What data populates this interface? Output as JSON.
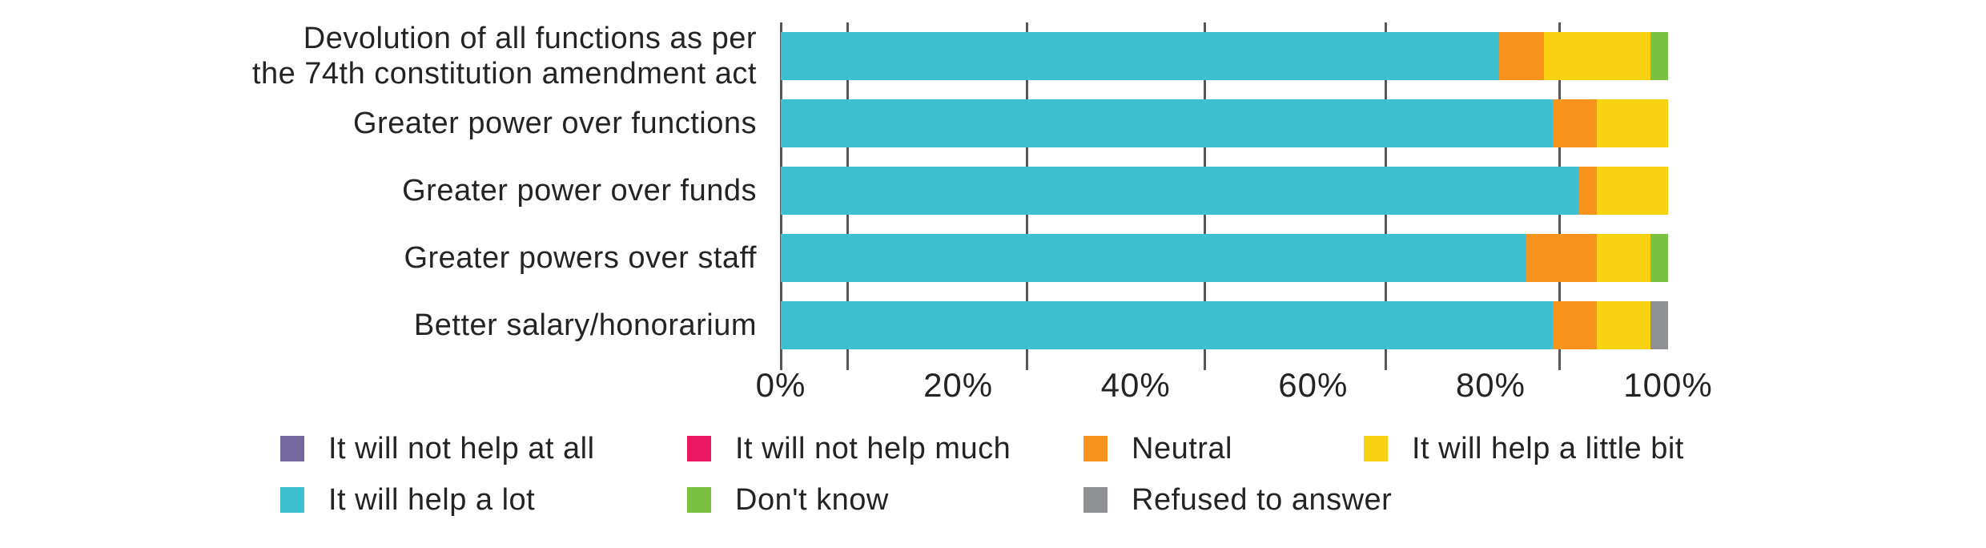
{
  "chart_data": {
    "type": "bar",
    "orientation": "horizontal",
    "stacked": true,
    "unit": "%",
    "title": "",
    "xlabel": "",
    "ylabel": "",
    "categories": [
      {
        "label": "Devolution of all functions as per the 74th constitution amendment act",
        "lines": [
          "Devolution of all functions as per",
          "the 74th constitution amendment act"
        ]
      },
      {
        "label": "Greater power over functions",
        "lines": [
          "Greater power over functions"
        ]
      },
      {
        "label": "Greater power over funds",
        "lines": [
          "Greater power over funds"
        ]
      },
      {
        "label": "Greater powers over staff",
        "lines": [
          "Greater powers over staff"
        ]
      },
      {
        "label": "Better salary/honorarium",
        "lines": [
          "Better salary/honorarium"
        ]
      }
    ],
    "series": [
      {
        "name": "It will not help at all",
        "color": "#74689e",
        "values": [
          0,
          0,
          0,
          0,
          0
        ]
      },
      {
        "name": "It will not help much",
        "color": "#eb1964",
        "values": [
          0,
          0,
          0,
          0,
          0
        ]
      },
      {
        "name": "It will help a lot",
        "color": "#3ec0d1",
        "values": [
          81,
          87,
          90,
          84,
          87
        ]
      },
      {
        "name": "Neutral",
        "color": "#f7941e",
        "values": [
          5,
          5,
          2,
          8,
          5
        ]
      },
      {
        "name": "It will help a little bit",
        "color": "#f9d313",
        "values": [
          12,
          8,
          8,
          6,
          6
        ]
      },
      {
        "name": "Don't know",
        "color": "#7ac143",
        "values": [
          2,
          0,
          0,
          2,
          0
        ]
      },
      {
        "name": "Refused to answer",
        "color": "#8e9093",
        "values": [
          0,
          0,
          0,
          0,
          2
        ]
      }
    ],
    "x_axis": {
      "range": [
        0,
        100
      ],
      "tick_labels": [
        "0%",
        "20%",
        "40%",
        "60%",
        "80%",
        "100%"
      ],
      "tick_step": 20
    },
    "grid": true,
    "gridline_percents": [
      7.5,
      27.7,
      47.7,
      68.1,
      87.7
    ],
    "axis_color": "#58585a",
    "legend": {
      "position": "bottom",
      "rows": [
        [
          "It will not help at all",
          "It will not help much",
          "Neutral",
          "It will help a little bit"
        ],
        [
          "It will help a lot",
          "Don't know",
          "Refused to answer"
        ]
      ]
    }
  }
}
